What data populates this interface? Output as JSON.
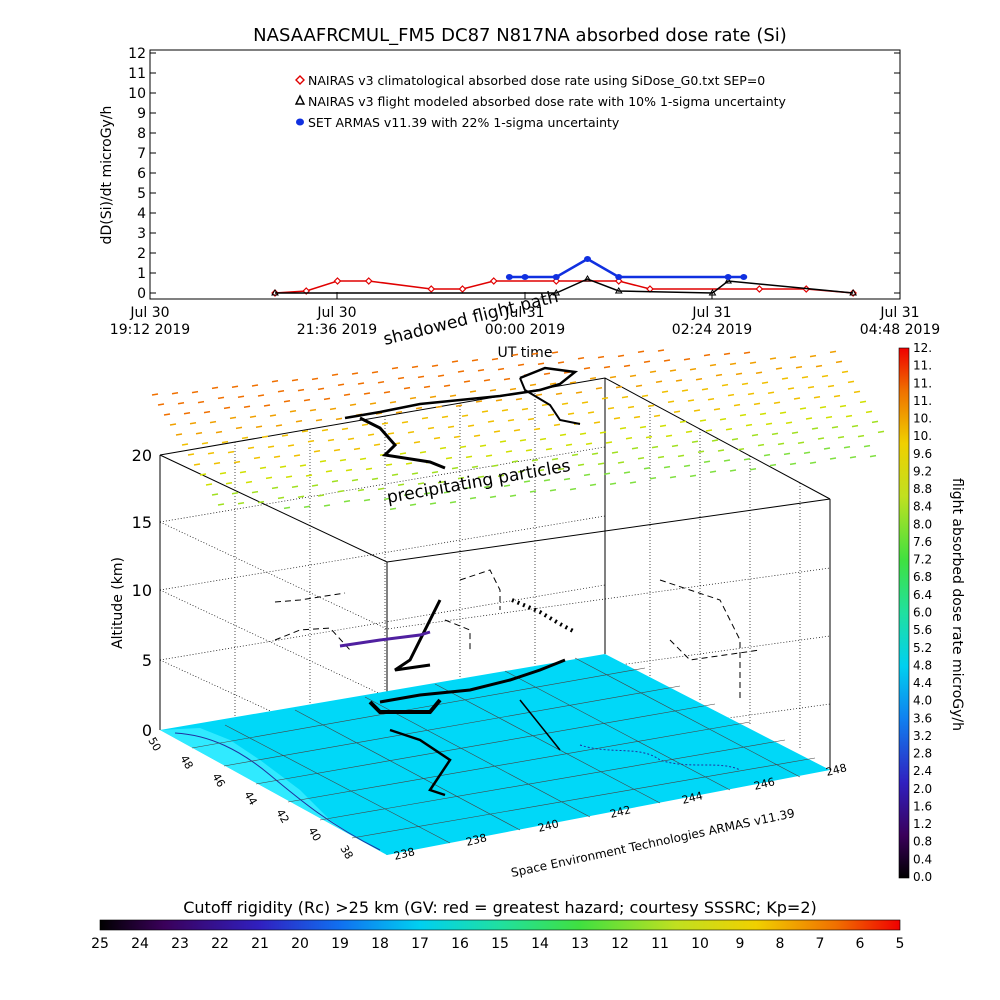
{
  "title": "NASAAFRCMUL_FM5 DC87 N817NA absorbed dose rate (Si)",
  "top_chart": {
    "ylabel": "dD(Si)/dt microGy/h",
    "xlabel": "UT time",
    "y_ticks": [
      "0",
      "1",
      "2",
      "3",
      "4",
      "5",
      "6",
      "7",
      "8",
      "9",
      "10",
      "11",
      "12"
    ],
    "x_ticks": [
      {
        "line1": "Jul 30",
        "line2": "19:12 2019"
      },
      {
        "line1": "Jul 30",
        "line2": "21:36 2019"
      },
      {
        "line1": "Jul 31",
        "line2": "00:00 2019"
      },
      {
        "line1": "Jul 31",
        "line2": "02:24 2019"
      },
      {
        "line1": "Jul 31",
        "line2": "04:48 2019"
      }
    ],
    "legend": [
      {
        "label": "NAIRAS v3 climatological absorbed dose rate using SiDose_G0.txt SEP=0",
        "color": "#e00000",
        "marker": "diamond"
      },
      {
        "label": "NAIRAS v3 flight modeled absorbed dose rate with 10% 1-sigma uncertainty",
        "color": "#000000",
        "marker": "triangle"
      },
      {
        "label": "SET ARMAS v11.39 with 22% 1-sigma uncertainty",
        "color": "#1030e0",
        "marker": "dot"
      }
    ]
  },
  "chart_data": [
    {
      "type": "line",
      "title": "NASAAFRCMUL_FM5 DC87 N817NA absorbed dose rate (Si)",
      "xlabel": "UT time",
      "ylabel": "dD(Si)/dt microGy/h",
      "xlim": [
        "2019-07-30 19:12",
        "2019-07-31 04:48"
      ],
      "ylim": [
        0,
        12
      ],
      "grid": false,
      "legend_position": "top-center",
      "series": [
        {
          "name": "NAIRAS v3 climatological absorbed dose rate using SiDose_G0.txt SEP=0",
          "color": "#e00000",
          "x": [
            "2019-07-30 20:48",
            "2019-07-30 21:12",
            "2019-07-30 21:36",
            "2019-07-30 22:00",
            "2019-07-30 22:48",
            "2019-07-30 23:12",
            "2019-07-30 23:36",
            "2019-07-31 00:24",
            "2019-07-31 01:12",
            "2019-07-31 01:36",
            "2019-07-31 03:00",
            "2019-07-31 03:36",
            "2019-07-31 04:12"
          ],
          "values": [
            0.0,
            0.1,
            0.6,
            0.6,
            0.2,
            0.2,
            0.6,
            0.6,
            0.6,
            0.2,
            0.2,
            0.2,
            0.0
          ]
        },
        {
          "name": "NAIRAS v3 flight modeled absorbed dose rate with 10% 1-sigma uncertainty",
          "color": "#000000",
          "x": [
            "2019-07-30 20:48",
            "2019-07-31 00:24",
            "2019-07-31 00:48",
            "2019-07-31 01:12",
            "2019-07-31 02:24",
            "2019-07-31 02:36",
            "2019-07-31 04:12"
          ],
          "values": [
            0.0,
            0.0,
            0.7,
            0.1,
            0.0,
            0.6,
            0.0
          ]
        },
        {
          "name": "SET ARMAS v11.39 with 22% 1-sigma uncertainty",
          "color": "#1030e0",
          "x": [
            "2019-07-30 23:48",
            "2019-07-31 00:00",
            "2019-07-31 00:24",
            "2019-07-31 00:48",
            "2019-07-31 01:12",
            "2019-07-31 02:36",
            "2019-07-31 02:48"
          ],
          "values": [
            0.8,
            0.8,
            0.8,
            1.7,
            0.8,
            0.8,
            0.8
          ]
        }
      ]
    },
    {
      "type": "scatter",
      "title": "",
      "ylabel": "Altitude (km)",
      "z_ticks": [
        "0",
        "5",
        "10",
        "15",
        "20"
      ],
      "lat_ticks": [
        "50",
        "48",
        "46",
        "44",
        "42",
        "40",
        "38"
      ],
      "lon_ticks": [
        "238",
        "238",
        "240",
        "242",
        "244",
        "246",
        "248"
      ],
      "colorbar": {
        "label": "flight absorbed dose rate microGy/h",
        "ticks": [
          "0.0",
          "0.4",
          "0.8",
          "1.2",
          "1.6",
          "2.0",
          "2.4",
          "2.8",
          "3.2",
          "3.6",
          "4.0",
          "4.4",
          "4.8",
          "5.2",
          "5.6",
          "6.0",
          "6.4",
          "6.8",
          "7.2",
          "7.6",
          "8.0",
          "8.4",
          "8.8",
          "9.2",
          "9.6",
          "10.",
          "10.",
          "11.",
          "11.",
          "11.",
          "12."
        ]
      },
      "annotations": [
        "shadowed flight path",
        "precipitating particles"
      ],
      "credit": "Space Environment Technologies ARMAS v11.39"
    }
  ],
  "bottom_bar": {
    "label": "Cutoff rigidity (Rc) >25 km (GV: red = greatest hazard; courtesy SSSRC; Kp=2)",
    "ticks": [
      "25",
      "24",
      "23",
      "22",
      "21",
      "20",
      "19",
      "18",
      "17",
      "16",
      "15",
      "14",
      "13",
      "12",
      "11",
      "10",
      "9",
      "8",
      "7",
      "6",
      "5"
    ]
  },
  "colors": {
    "map": "#00d8f8",
    "land": "#10e8ff",
    "flight": "#000000",
    "accent_red": "#e00000",
    "accent_blue": "#1030e0"
  }
}
